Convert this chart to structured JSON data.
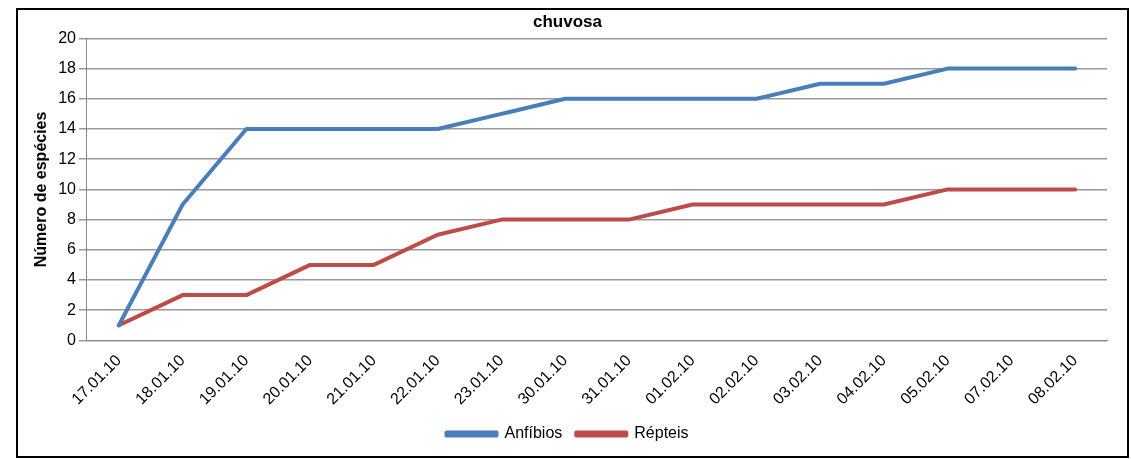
{
  "chart_data": {
    "type": "line",
    "title": "chuvosa",
    "ylabel": "Número de espécies",
    "categories": [
      "17.01.10",
      "18.01.10",
      "19.01.10",
      "20.01.10",
      "21.01.10",
      "22.01.10",
      "23.01.10",
      "30.01.10",
      "31.01.10",
      "01.02.10",
      "02.02.10",
      "03.02.10",
      "04.02.10",
      "05.02.10",
      "07.02.10",
      "08.02.10"
    ],
    "series": [
      {
        "name": "Anfíbios",
        "color": "#4a7ebb",
        "values": [
          1,
          9,
          14,
          14,
          14,
          14,
          15,
          16,
          16,
          16,
          16,
          17,
          17,
          18,
          18,
          18
        ]
      },
      {
        "name": "Répteis",
        "color": "#be4b48",
        "values": [
          1,
          3,
          3,
          5,
          5,
          7,
          8,
          8,
          8,
          9,
          9,
          9,
          9,
          10,
          10,
          10
        ]
      }
    ],
    "ylim": [
      0,
      20
    ],
    "yticks": [
      0,
      2,
      4,
      6,
      8,
      10,
      12,
      14,
      16,
      18,
      20
    ],
    "grid": "y",
    "legend": "bottom",
    "marker": "none",
    "line_style": "solid"
  }
}
